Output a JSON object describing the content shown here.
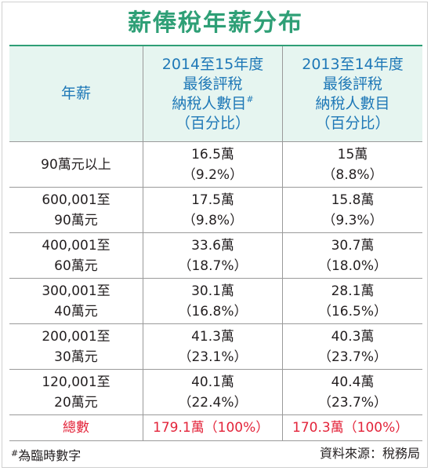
{
  "title": "薪俸稅年薪分布",
  "header": {
    "col1": "年薪",
    "col2": {
      "line1": "2014至15年度",
      "line2": "最後評稅",
      "line3": "納稅人數目",
      "mark": "#",
      "line4": "（百分比）"
    },
    "col3": {
      "line1": "2013至14年度",
      "line2": "最後評稅",
      "line3": "納稅人數目",
      "line4": "（百分比）"
    }
  },
  "rows": [
    {
      "range": [
        "90萬元以上"
      ],
      "y2015": "16.5萬",
      "p2015": "（9.2%）",
      "y2014": "15萬",
      "p2014": "（8.8%）"
    },
    {
      "range": [
        "600,001至",
        "90萬元"
      ],
      "y2015": "17.5萬",
      "p2015": "（9.8%）",
      "y2014": "15.8萬",
      "p2014": "（9.3%）"
    },
    {
      "range": [
        "400,001至",
        "60萬元"
      ],
      "y2015": "33.6萬",
      "p2015": "（18.7%）",
      "y2014": "30.7萬",
      "p2014": "（18.0%）"
    },
    {
      "range": [
        "300,001至",
        "40萬元"
      ],
      "y2015": "30.1萬",
      "p2015": "（16.8%）",
      "y2014": "28.1萬",
      "p2014": "（16.5%）"
    },
    {
      "range": [
        "200,001至",
        "30萬元"
      ],
      "y2015": "41.3萬",
      "p2015": "（23.1%）",
      "y2014": "40.3萬",
      "p2014": "（23.7%）"
    },
    {
      "range": [
        "120,001至",
        "20萬元"
      ],
      "y2015": "40.1萬",
      "p2015": "（22.4%）",
      "y2014": "40.4萬",
      "p2014": "（23.7%）"
    }
  ],
  "total": {
    "label": "總數",
    "y2015": "179.1萬（100%）",
    "y2014": "170.3萬（100%）"
  },
  "footnote": {
    "mark": "#",
    "text": "為臨時數字"
  },
  "source": "資料來源：稅務局",
  "colors": {
    "title": "#2e9f76",
    "header_text": "#1e78b7",
    "header_bg": "#e6f5f0",
    "total": "#e3243a"
  }
}
